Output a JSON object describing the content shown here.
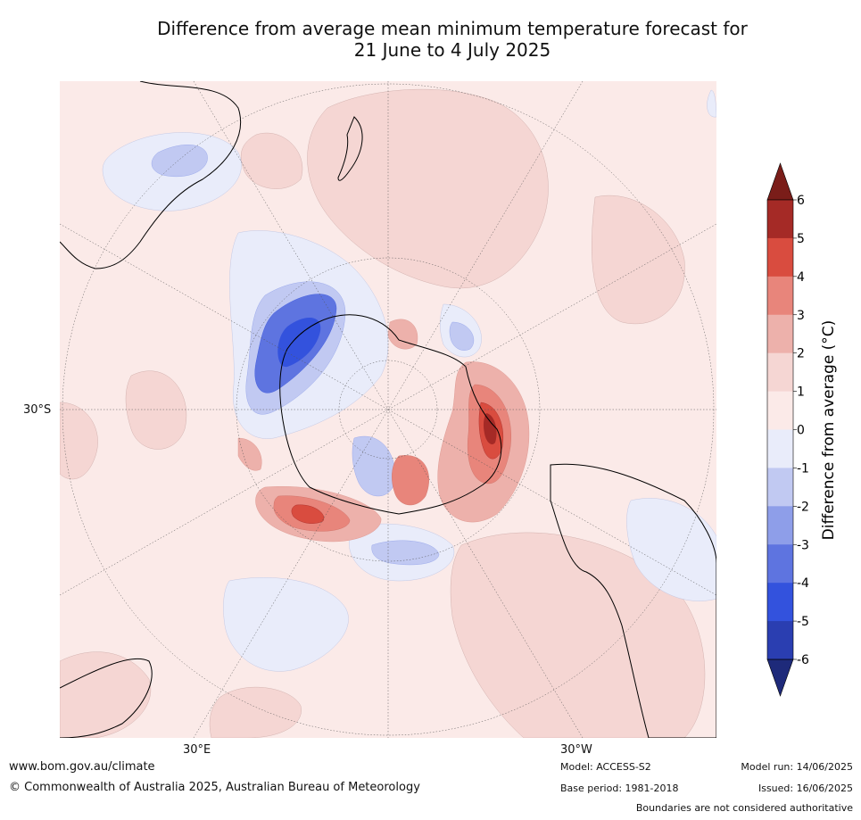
{
  "title": {
    "line1": "Difference from average mean minimum temperature forecast for",
    "line2": "21 June to 4 July 2025"
  },
  "map": {
    "lat_label": "30°S",
    "lon_labels": [
      "30°E",
      "30°W"
    ],
    "colors": {
      "ocean_bg": "#fbeae8",
      "land_outline": "#000000",
      "graticule": "#555555"
    }
  },
  "colorbar": {
    "label": "Difference from average (°C)",
    "ticks": [
      "6",
      "5",
      "4",
      "3",
      "2",
      "1",
      "0",
      "-1",
      "-2",
      "-3",
      "-4",
      "-5",
      "-6"
    ],
    "colors_top_to_bottom": [
      "#a52a26",
      "#d94c3f",
      "#e8857b",
      "#edb1ab",
      "#f5d6d3",
      "#fbeae8",
      "#e9ecfa",
      "#c1c9f2",
      "#8e9ee9",
      "#5e74e0",
      "#3352dd",
      "#2a3eb1"
    ],
    "extend_top_color": "#7a1d19",
    "extend_bottom_color": "#1e2a7a"
  },
  "footer": {
    "website": "www.bom.gov.au/climate",
    "copyright": "© Commonwealth of Australia 2025, Australian Bureau of Meteorology",
    "model": "Model: ACCESS-S2",
    "base_period": "Base period: 1981-2018",
    "model_run": "Model run: 14/06/2025",
    "issued": "Issued: 16/06/2025",
    "disclaimer": "Boundaries are not considered authoritative"
  }
}
